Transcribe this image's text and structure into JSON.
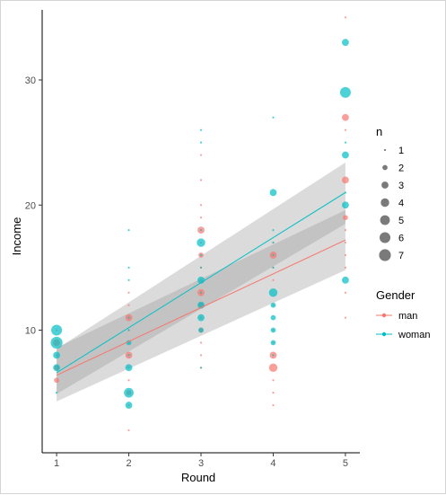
{
  "chart_data": {
    "type": "scatter",
    "xlabel": "Round",
    "ylabel": "Income",
    "xlim": [
      0.8,
      5.2
    ],
    "ylim": [
      0.2,
      35.6
    ],
    "x_ticks": [
      1,
      2,
      3,
      4,
      5
    ],
    "y_ticks": [
      10,
      20,
      30
    ],
    "grid": false,
    "legend_position": "right",
    "size_legend": {
      "title": "n",
      "values": [
        1,
        2,
        3,
        4,
        5,
        6,
        7
      ]
    },
    "color_legend": {
      "title": "Gender",
      "entries": [
        "man",
        "woman"
      ]
    },
    "colors": {
      "man": "#F8766D",
      "woman": "#00BFC4",
      "ribbon": "#999999",
      "axis": "#000000",
      "size_key": "#595959"
    },
    "series": [
      {
        "name": "man",
        "points": [
          {
            "x": 1,
            "y": 6,
            "n": 2
          },
          {
            "x": 1,
            "y": 7,
            "n": 2
          },
          {
            "x": 1,
            "y": 8,
            "n": 1
          },
          {
            "x": 1,
            "y": 9,
            "n": 3
          },
          {
            "x": 1,
            "y": 10,
            "n": 1
          },
          {
            "x": 2,
            "y": 2,
            "n": 1
          },
          {
            "x": 2,
            "y": 4,
            "n": 1
          },
          {
            "x": 2,
            "y": 5,
            "n": 2
          },
          {
            "x": 2,
            "y": 6,
            "n": 1
          },
          {
            "x": 2,
            "y": 7,
            "n": 1
          },
          {
            "x": 2,
            "y": 8,
            "n": 3
          },
          {
            "x": 2,
            "y": 9,
            "n": 1
          },
          {
            "x": 2,
            "y": 10,
            "n": 1
          },
          {
            "x": 2,
            "y": 11,
            "n": 3
          },
          {
            "x": 2,
            "y": 12,
            "n": 1
          },
          {
            "x": 2,
            "y": 13,
            "n": 1
          },
          {
            "x": 3,
            "y": 7,
            "n": 1
          },
          {
            "x": 3,
            "y": 8,
            "n": 1
          },
          {
            "x": 3,
            "y": 9,
            "n": 1
          },
          {
            "x": 3,
            "y": 10,
            "n": 2
          },
          {
            "x": 3,
            "y": 11,
            "n": 1
          },
          {
            "x": 3,
            "y": 12,
            "n": 2
          },
          {
            "x": 3,
            "y": 13,
            "n": 3
          },
          {
            "x": 3,
            "y": 14,
            "n": 1
          },
          {
            "x": 3,
            "y": 15,
            "n": 1
          },
          {
            "x": 3,
            "y": 16,
            "n": 2
          },
          {
            "x": 3,
            "y": 17,
            "n": 1
          },
          {
            "x": 3,
            "y": 18,
            "n": 3
          },
          {
            "x": 3,
            "y": 19,
            "n": 1
          },
          {
            "x": 3,
            "y": 20,
            "n": 1
          },
          {
            "x": 3,
            "y": 22,
            "n": 1
          },
          {
            "x": 3,
            "y": 24,
            "n": 1
          },
          {
            "x": 4,
            "y": 4,
            "n": 1
          },
          {
            "x": 4,
            "y": 5,
            "n": 1
          },
          {
            "x": 4,
            "y": 6,
            "n": 1
          },
          {
            "x": 4,
            "y": 7,
            "n": 4
          },
          {
            "x": 4,
            "y": 8,
            "n": 3
          },
          {
            "x": 4,
            "y": 9,
            "n": 1
          },
          {
            "x": 4,
            "y": 10,
            "n": 1
          },
          {
            "x": 4,
            "y": 12,
            "n": 1
          },
          {
            "x": 4,
            "y": 14,
            "n": 1
          },
          {
            "x": 4,
            "y": 15,
            "n": 1
          },
          {
            "x": 4,
            "y": 16,
            "n": 3
          },
          {
            "x": 4,
            "y": 17,
            "n": 1
          },
          {
            "x": 5,
            "y": 11,
            "n": 1
          },
          {
            "x": 5,
            "y": 13,
            "n": 1
          },
          {
            "x": 5,
            "y": 15,
            "n": 1
          },
          {
            "x": 5,
            "y": 16,
            "n": 1
          },
          {
            "x": 5,
            "y": 17,
            "n": 1
          },
          {
            "x": 5,
            "y": 18,
            "n": 1
          },
          {
            "x": 5,
            "y": 19,
            "n": 2
          },
          {
            "x": 5,
            "y": 22,
            "n": 3
          },
          {
            "x": 5,
            "y": 26,
            "n": 1
          },
          {
            "x": 5,
            "y": 27,
            "n": 3
          },
          {
            "x": 5,
            "y": 35,
            "n": 1
          }
        ]
      },
      {
        "name": "woman",
        "points": [
          {
            "x": 1,
            "y": 5,
            "n": 1
          },
          {
            "x": 1,
            "y": 7,
            "n": 3
          },
          {
            "x": 1,
            "y": 8,
            "n": 3
          },
          {
            "x": 1,
            "y": 9,
            "n": 7
          },
          {
            "x": 1,
            "y": 10,
            "n": 6
          },
          {
            "x": 2,
            "y": 4,
            "n": 3
          },
          {
            "x": 2,
            "y": 5,
            "n": 5
          },
          {
            "x": 2,
            "y": 7,
            "n": 3
          },
          {
            "x": 2,
            "y": 8,
            "n": 1
          },
          {
            "x": 2,
            "y": 9,
            "n": 2
          },
          {
            "x": 2,
            "y": 10,
            "n": 1
          },
          {
            "x": 2,
            "y": 11,
            "n": 1
          },
          {
            "x": 2,
            "y": 14,
            "n": 1
          },
          {
            "x": 2,
            "y": 15,
            "n": 1
          },
          {
            "x": 2,
            "y": 18,
            "n": 1
          },
          {
            "x": 3,
            "y": 7,
            "n": 1
          },
          {
            "x": 3,
            "y": 10,
            "n": 2
          },
          {
            "x": 3,
            "y": 11,
            "n": 3
          },
          {
            "x": 3,
            "y": 12,
            "n": 3
          },
          {
            "x": 3,
            "y": 13,
            "n": 1
          },
          {
            "x": 3,
            "y": 14,
            "n": 3
          },
          {
            "x": 3,
            "y": 15,
            "n": 1
          },
          {
            "x": 3,
            "y": 16,
            "n": 1
          },
          {
            "x": 3,
            "y": 17,
            "n": 4
          },
          {
            "x": 3,
            "y": 18,
            "n": 1
          },
          {
            "x": 3,
            "y": 25,
            "n": 1
          },
          {
            "x": 3,
            "y": 26,
            "n": 1
          },
          {
            "x": 4,
            "y": 8,
            "n": 1
          },
          {
            "x": 4,
            "y": 9,
            "n": 2
          },
          {
            "x": 4,
            "y": 10,
            "n": 2
          },
          {
            "x": 4,
            "y": 11,
            "n": 2
          },
          {
            "x": 4,
            "y": 12,
            "n": 2
          },
          {
            "x": 4,
            "y": 13,
            "n": 4
          },
          {
            "x": 4,
            "y": 15,
            "n": 1
          },
          {
            "x": 4,
            "y": 16,
            "n": 1
          },
          {
            "x": 4,
            "y": 17,
            "n": 1
          },
          {
            "x": 4,
            "y": 18,
            "n": 1
          },
          {
            "x": 4,
            "y": 21,
            "n": 3
          },
          {
            "x": 4,
            "y": 27,
            "n": 1
          },
          {
            "x": 5,
            "y": 14,
            "n": 3
          },
          {
            "x": 5,
            "y": 20,
            "n": 3
          },
          {
            "x": 5,
            "y": 21,
            "n": 1
          },
          {
            "x": 5,
            "y": 24,
            "n": 3
          },
          {
            "x": 5,
            "y": 25,
            "n": 1
          },
          {
            "x": 5,
            "y": 29,
            "n": 6
          },
          {
            "x": 5,
            "y": 33,
            "n": 3
          }
        ]
      }
    ],
    "fit_lines": [
      {
        "name": "man",
        "x": [
          1,
          5
        ],
        "y": [
          6.4,
          17.2
        ],
        "ci_low": [
          4.3,
          14.8
        ],
        "ci_high": [
          8.6,
          19.6
        ]
      },
      {
        "name": "woman",
        "x": [
          1,
          5
        ],
        "y": [
          6.6,
          21.0
        ],
        "ci_low": [
          4.9,
          18.5
        ],
        "ci_high": [
          8.5,
          23.4
        ]
      }
    ]
  }
}
